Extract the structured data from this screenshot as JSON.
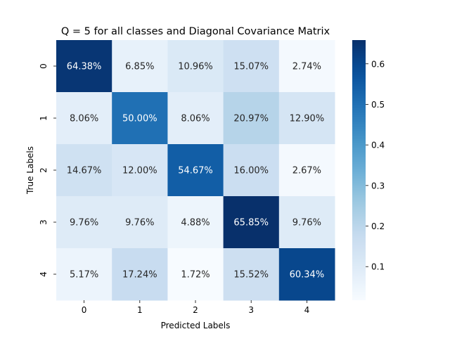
{
  "chart_data": {
    "type": "heatmap",
    "title": "Q = 5 for all classes and Diagonal Covariance Matrix",
    "xlabel": "Predicted Labels",
    "ylabel": "True Labels",
    "x_categories": [
      "0",
      "1",
      "2",
      "3",
      "4"
    ],
    "y_categories": [
      "0",
      "1",
      "2",
      "3",
      "4"
    ],
    "values": [
      [
        64.38,
        6.85,
        10.96,
        15.07,
        2.74
      ],
      [
        8.06,
        50.0,
        8.06,
        20.97,
        12.9
      ],
      [
        14.67,
        12.0,
        54.67,
        16.0,
        2.67
      ],
      [
        9.76,
        9.76,
        4.88,
        65.85,
        9.76
      ],
      [
        5.17,
        17.24,
        1.72,
        15.52,
        60.34
      ]
    ],
    "cell_labels": [
      [
        "64.38%",
        "6.85%",
        "10.96%",
        "15.07%",
        "2.74%"
      ],
      [
        "8.06%",
        "50.00%",
        "8.06%",
        "20.97%",
        "12.90%"
      ],
      [
        "14.67%",
        "12.00%",
        "54.67%",
        "16.00%",
        "2.67%"
      ],
      [
        "9.76%",
        "9.76%",
        "4.88%",
        "65.85%",
        "9.76%"
      ],
      [
        "5.17%",
        "17.24%",
        "1.72%",
        "15.52%",
        "60.34%"
      ]
    ],
    "colormap": "Blues",
    "colorbar": {
      "range": [
        0.0172,
        0.6585
      ],
      "ticks": [
        0.1,
        0.2,
        0.3,
        0.4,
        0.5,
        0.6
      ],
      "tick_labels": [
        "0.1",
        "0.2",
        "0.3",
        "0.4",
        "0.5",
        "0.6"
      ]
    },
    "grid": false,
    "legend": "colorbar-right"
  }
}
